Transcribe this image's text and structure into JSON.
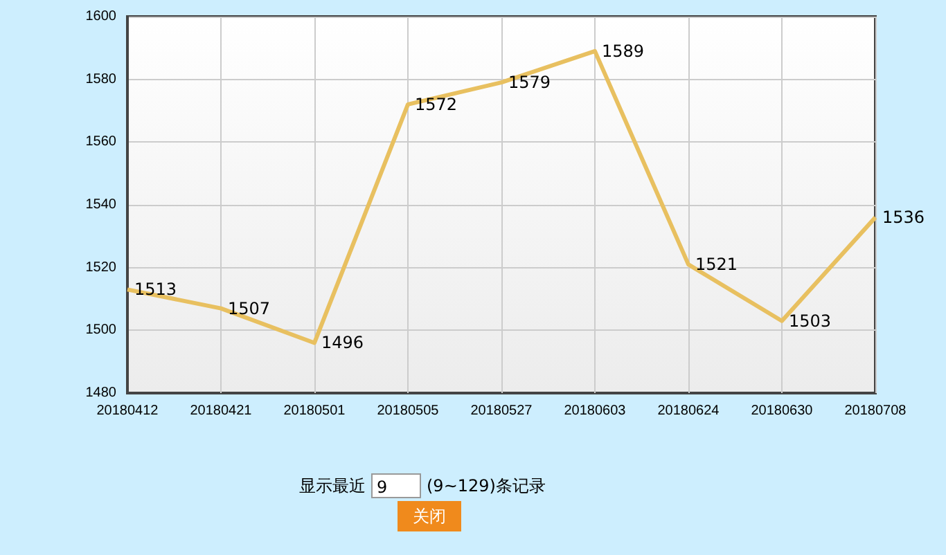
{
  "chart_data": {
    "type": "line",
    "categories": [
      "20180412",
      "20180421",
      "20180501",
      "20180505",
      "20180527",
      "20180603",
      "20180624",
      "20180630",
      "20180708"
    ],
    "series": [
      {
        "color": "#e8c060",
        "values": [
          1513,
          1507,
          1496,
          1572,
          1579,
          1589,
          1521,
          1503,
          1536
        ]
      }
    ],
    "ylim": [
      1480,
      1600
    ],
    "yticks": [
      1480,
      1500,
      1520,
      1540,
      1560,
      1580,
      1600
    ],
    "grid": true,
    "data_labels": true,
    "marker": "none",
    "line_style": "solid",
    "annotations": [
      "显示最近",
      "9",
      "(9~129)条记录",
      "关闭"
    ]
  }
}
